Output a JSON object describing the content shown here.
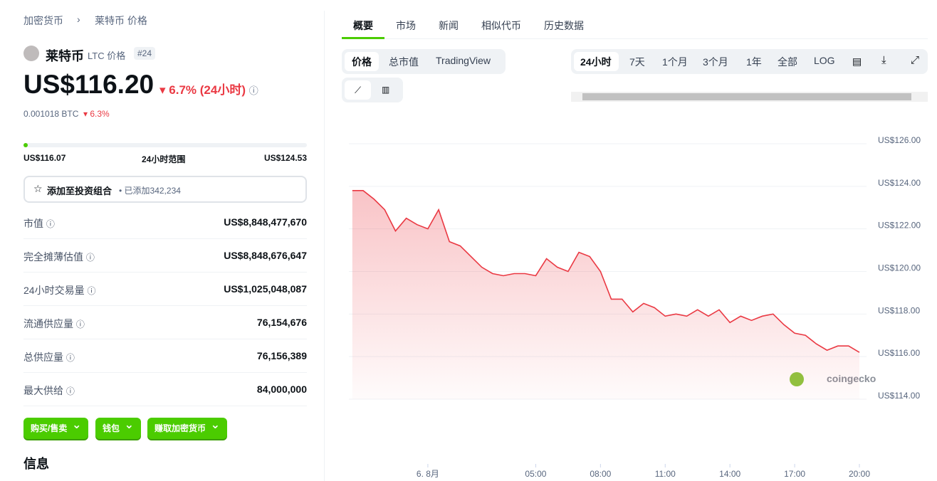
{
  "breadcrumb": [
    "加密货币",
    "莱特币 价格"
  ],
  "coin": {
    "name": "莱特币",
    "symbol": "LTC 价格",
    "rank": "#24",
    "price": "US$116.20",
    "change": "6.7% (24小时)",
    "btc_price": "0.001018 BTC",
    "btc_change": "6.3%"
  },
  "range": {
    "low": "US$116.07",
    "label": "24小时范围",
    "high": "US$124.53"
  },
  "portfolio": {
    "label": "添加至投资组合",
    "added": "• 已添加342,234"
  },
  "stats": [
    [
      "市值",
      "US$8,848,477,670"
    ],
    [
      "完全摊薄估值",
      "US$8,848,676,647"
    ],
    [
      "24小时交易量",
      "US$1,025,048,087"
    ],
    [
      "流通供应量",
      "76,154,676"
    ],
    [
      "总供应量",
      "76,156,389"
    ],
    [
      "最大供给",
      "84,000,000"
    ]
  ],
  "buttons": [
    "购买/售卖",
    "钱包",
    "赚取加密货币"
  ],
  "section": "信息",
  "tabs": [
    "概要",
    "市场",
    "新闻",
    "相似代币",
    "历史数据"
  ],
  "chart_tabs": [
    "价格",
    "总市值",
    "TradingView"
  ],
  "periods": [
    "24小时",
    "7天",
    "1个月",
    "3个月",
    "1年",
    "全部",
    "LOG"
  ],
  "chart_data": {
    "type": "line",
    "watermark": "coingecko",
    "x": [
      -3.5,
      -3,
      -2.5,
      -2,
      -1.5,
      -1,
      -0.5,
      0,
      0.5,
      1,
      1.5,
      2,
      2.5,
      3,
      3.5,
      4,
      4.5,
      5,
      5.5,
      6,
      6.5,
      7,
      7.5,
      8,
      8.5,
      9,
      9.5,
      10,
      10.5,
      11,
      11.5,
      12,
      12.5,
      13,
      13.5,
      14,
      14.5,
      15,
      15.5,
      16,
      16.5,
      17,
      17.5,
      18,
      18.5,
      19,
      19.5,
      20
    ],
    "series": [
      {
        "color": "#ea3943",
        "values": [
          123.8,
          123.8,
          123.4,
          122.9,
          121.9,
          122.5,
          122.2,
          122.0,
          122.9,
          121.4,
          121.2,
          120.7,
          120.2,
          119.9,
          119.8,
          119.9,
          119.9,
          119.8,
          120.6,
          120.2,
          120.0,
          120.9,
          120.7,
          120.0,
          118.7,
          118.7,
          118.1,
          118.5,
          118.3,
          117.9,
          118.0,
          117.9,
          118.2,
          117.9,
          118.2,
          117.6,
          117.9,
          117.7,
          117.9,
          118.0,
          117.5,
          117.1,
          117.0,
          116.6,
          116.3,
          116.5,
          116.5,
          116.2
        ]
      }
    ],
    "xlim": [
      -3.66,
      20.33
    ],
    "xticks": [
      {
        "value": 0,
        "label": "6. 8月"
      },
      {
        "value": 5,
        "label": "05:00"
      },
      {
        "value": 8,
        "label": "08:00"
      },
      {
        "value": 11,
        "label": "11:00"
      },
      {
        "value": 14,
        "label": "14:00"
      },
      {
        "value": 17,
        "label": "17:00"
      },
      {
        "value": 20,
        "label": "20:00"
      }
    ],
    "ylim": [
      114,
      126
    ],
    "yticks": [
      {
        "value": 126,
        "label": "US$126.00"
      },
      {
        "value": 124,
        "label": "US$124.00"
      },
      {
        "value": 122,
        "label": "US$122.00"
      },
      {
        "value": 120,
        "label": "US$120.00"
      },
      {
        "value": 118,
        "label": "US$118.00"
      },
      {
        "value": 116,
        "label": "US$116.00"
      },
      {
        "value": 114,
        "label": "US$114.00"
      }
    ],
    "grid": true
  }
}
